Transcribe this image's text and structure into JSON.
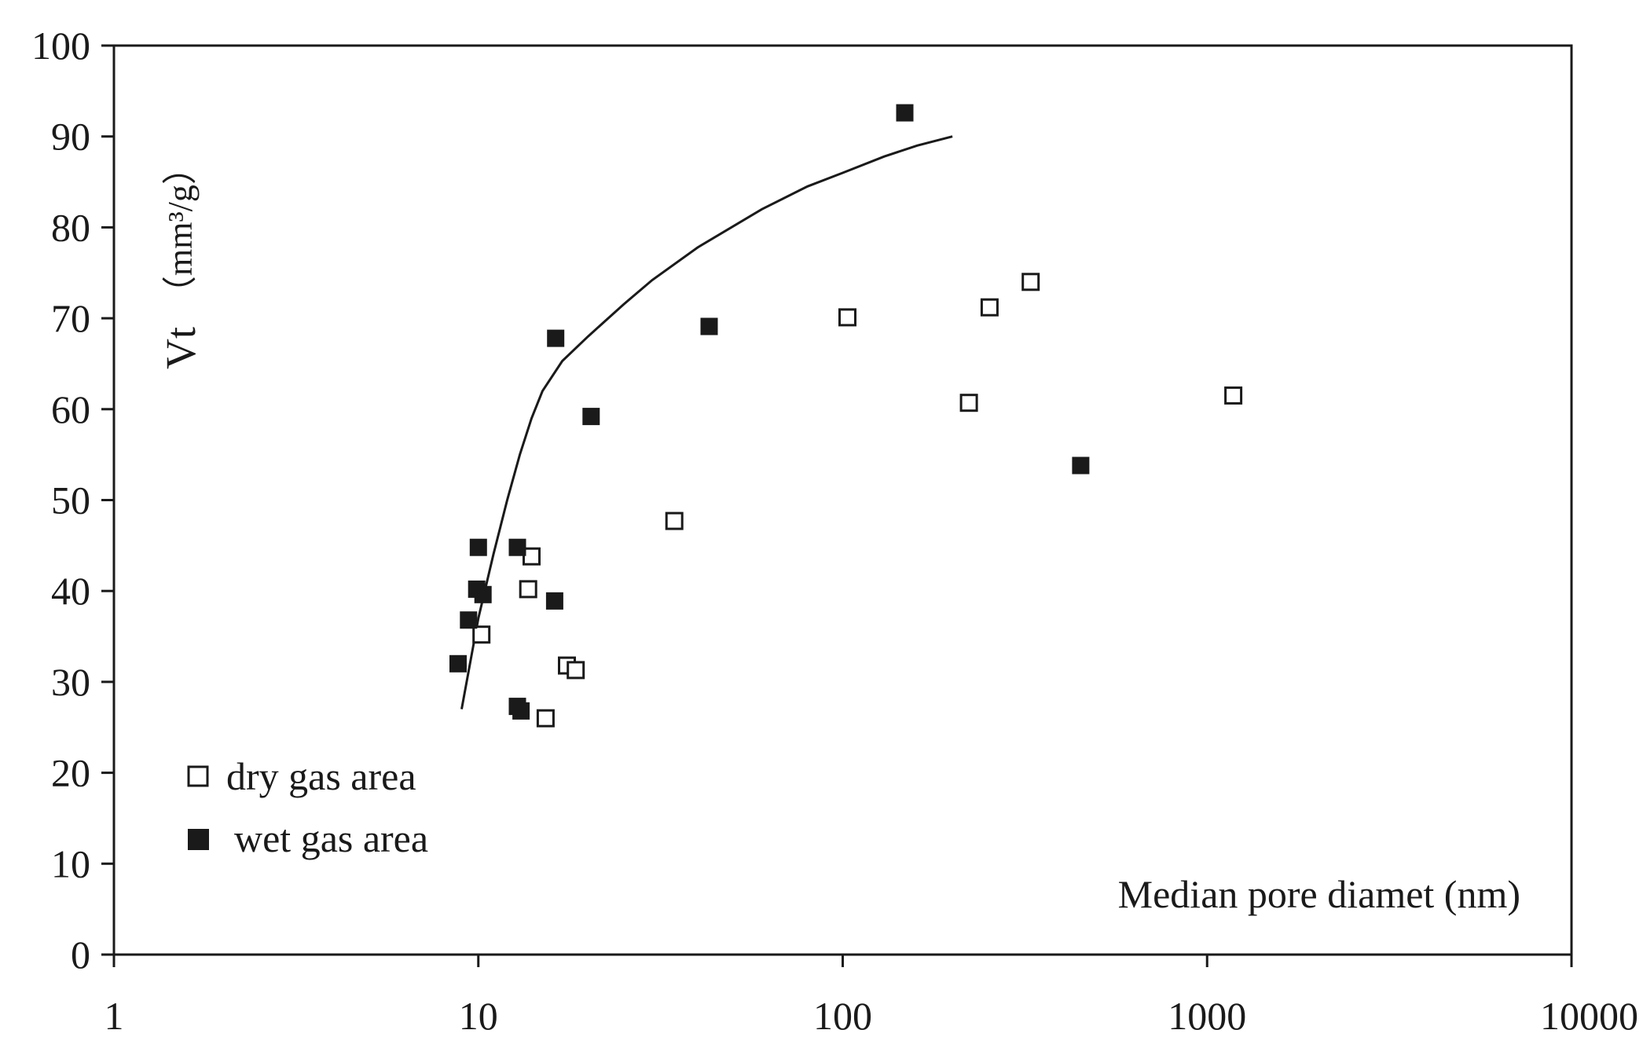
{
  "chart_data": {
    "type": "scatter",
    "title": "",
    "xlabel": "Median pore diamet (nm)",
    "ylabel": {
      "main": "Vt",
      "unit": "（mm³/g）"
    },
    "xscale": "log",
    "xlim": [
      1,
      10000
    ],
    "ylim": [
      0,
      100
    ],
    "x_ticks": [
      1,
      10,
      100,
      1000,
      10000
    ],
    "x_tick_labels": [
      "1",
      "10",
      "100",
      "1000",
      "10000"
    ],
    "y_ticks": [
      0,
      10,
      20,
      30,
      40,
      50,
      60,
      70,
      80,
      90,
      100
    ],
    "y_tick_labels": [
      "0",
      "10",
      "20",
      "30",
      "40",
      "50",
      "60",
      "70",
      "80",
      "90",
      "100"
    ],
    "grid": false,
    "legend_position": "bottom-left",
    "series": [
      {
        "name": "dry gas area",
        "marker": "open-square",
        "color": "#1a1a1a",
        "points": [
          {
            "x": 10.2,
            "y": 35.2
          },
          {
            "x": 13.7,
            "y": 40.2
          },
          {
            "x": 14.0,
            "y": 43.8
          },
          {
            "x": 17.5,
            "y": 31.8
          },
          {
            "x": 18.5,
            "y": 31.3
          },
          {
            "x": 15.3,
            "y": 26.0
          },
          {
            "x": 34.5,
            "y": 47.7
          },
          {
            "x": 103,
            "y": 70.1
          },
          {
            "x": 222,
            "y": 60.7
          },
          {
            "x": 253,
            "y": 71.2
          },
          {
            "x": 328,
            "y": 74.0
          },
          {
            "x": 1180,
            "y": 61.5
          }
        ]
      },
      {
        "name": "wet gas area",
        "marker": "filled-square",
        "color": "#1a1a1a",
        "points": [
          {
            "x": 8.8,
            "y": 32.0
          },
          {
            "x": 9.4,
            "y": 36.8
          },
          {
            "x": 9.9,
            "y": 40.2
          },
          {
            "x": 10.0,
            "y": 44.8
          },
          {
            "x": 10.3,
            "y": 39.6
          },
          {
            "x": 12.8,
            "y": 44.8
          },
          {
            "x": 12.8,
            "y": 27.3
          },
          {
            "x": 13.1,
            "y": 26.8
          },
          {
            "x": 16.2,
            "y": 38.9
          },
          {
            "x": 16.3,
            "y": 67.8
          },
          {
            "x": 20.4,
            "y": 59.2
          },
          {
            "x": 43.0,
            "y": 69.1
          },
          {
            "x": 148,
            "y": 92.6
          },
          {
            "x": 450,
            "y": 53.8
          }
        ]
      }
    ],
    "trend_curve": [
      {
        "x": 9.0,
        "y": 27.0
      },
      {
        "x": 10.0,
        "y": 37.0
      },
      {
        "x": 11.0,
        "y": 44.0
      },
      {
        "x": 12.0,
        "y": 50.0
      },
      {
        "x": 13.0,
        "y": 55.0
      },
      {
        "x": 14.0,
        "y": 59.0
      },
      {
        "x": 15.0,
        "y": 62.0
      },
      {
        "x": 17.0,
        "y": 65.3
      },
      {
        "x": 20.0,
        "y": 68.0
      },
      {
        "x": 25.0,
        "y": 71.5
      },
      {
        "x": 30.0,
        "y": 74.2
      },
      {
        "x": 40.0,
        "y": 77.8
      },
      {
        "x": 60.0,
        "y": 82.0
      },
      {
        "x": 80.0,
        "y": 84.5
      },
      {
        "x": 100.0,
        "y": 86.0
      },
      {
        "x": 130.0,
        "y": 87.8
      },
      {
        "x": 160.0,
        "y": 89.0
      },
      {
        "x": 200.0,
        "y": 90.0
      }
    ]
  }
}
